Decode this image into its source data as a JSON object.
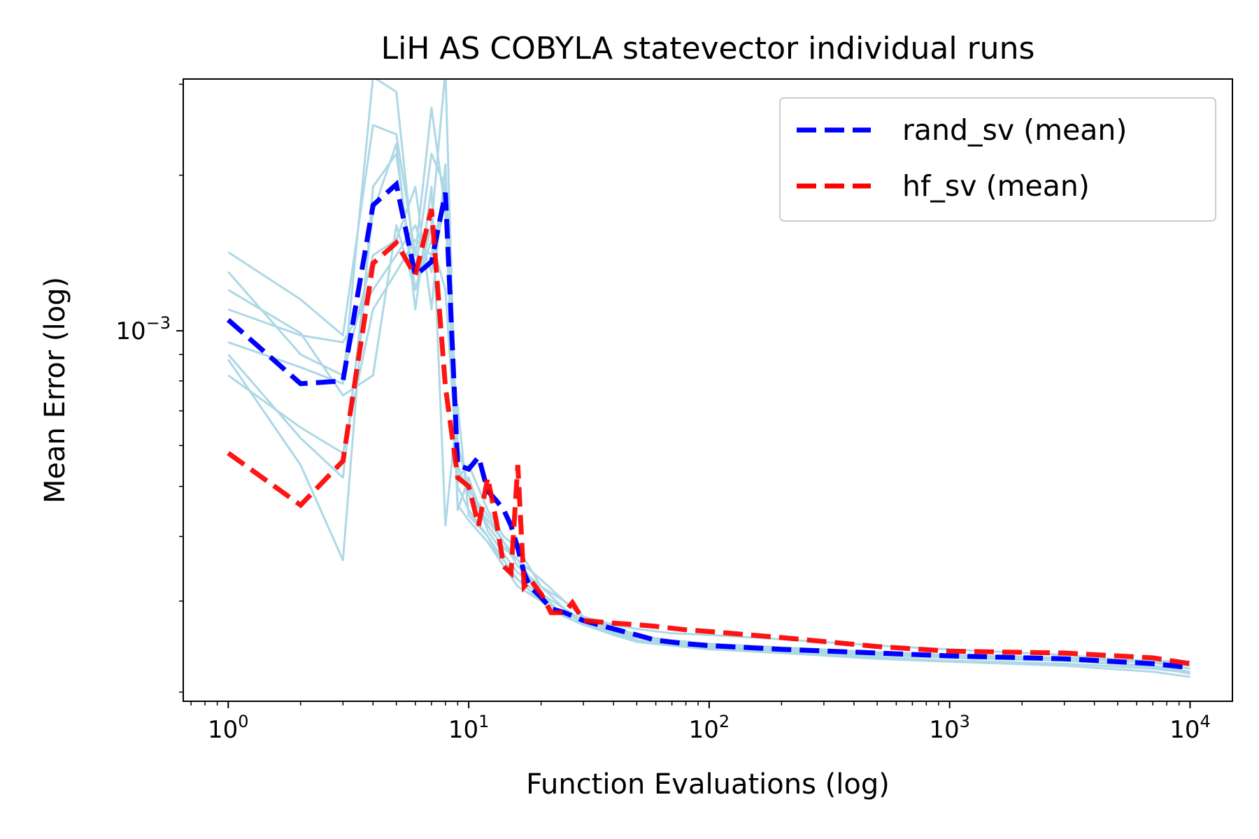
{
  "chart_data": {
    "type": "line",
    "title": "LiH AS COBYLA statevector individual runs",
    "xlabel": "Function Evaluations (log)",
    "ylabel": "Mean Error (log)",
    "xscale": "log",
    "yscale": "log",
    "xlim": [
      0.65,
      15000
    ],
    "ylim": [
      0.000192,
      0.00307
    ],
    "xticks": [
      {
        "value": 1,
        "base": "10",
        "exp": "0"
      },
      {
        "value": 10,
        "base": "10",
        "exp": "1"
      },
      {
        "value": 100,
        "base": "10",
        "exp": "2"
      },
      {
        "value": 1000,
        "base": "10",
        "exp": "3"
      },
      {
        "value": 10000,
        "base": "10",
        "exp": "4"
      }
    ],
    "yticks": [
      {
        "value": 0.001,
        "base": "10",
        "exp": "−3"
      }
    ],
    "legend": {
      "position": "top-right",
      "entries": [
        {
          "label": "rand_sv (mean)",
          "color": "#0000ff",
          "style": "dashed"
        },
        {
          "label": "hf_sv (mean)",
          "color": "#ff0000",
          "style": "dashed"
        }
      ]
    },
    "individual_runs_color": "#add8e6",
    "individual_runs": [
      {
        "x": [
          1,
          2,
          3,
          4,
          5,
          6,
          7,
          8,
          9,
          10,
          12,
          14,
          16,
          20,
          25,
          30,
          40,
          50,
          70,
          100,
          200,
          500,
          1000,
          3000,
          7000,
          10000
        ],
        "y": [
          0.00142,
          0.00115,
          0.00098,
          0.0025,
          0.0024,
          0.0014,
          0.0027,
          0.0017,
          0.00052,
          0.00055,
          0.00045,
          0.0004,
          0.00038,
          0.00032,
          0.0003,
          0.00028,
          0.00027,
          0.000265,
          0.00026,
          0.000258,
          0.000253,
          0.000246,
          0.000242,
          0.000236,
          0.000228,
          0.000222
        ]
      },
      {
        "x": [
          1,
          2,
          3,
          4,
          5,
          6,
          7,
          8,
          9,
          10,
          12,
          14,
          16,
          20,
          25,
          30,
          40,
          50,
          70,
          100,
          200,
          500,
          1000,
          3000,
          7000,
          10000
        ],
        "y": [
          0.00095,
          0.00085,
          0.00079,
          0.0031,
          0.0029,
          0.0013,
          0.0022,
          0.0019,
          0.0006,
          0.0005,
          0.00042,
          0.00038,
          0.00036,
          0.00031,
          0.00029,
          0.00027,
          0.00026,
          0.000255,
          0.000248,
          0.000245,
          0.000242,
          0.000238,
          0.000235,
          0.000232,
          0.000228,
          0.000226
        ]
      },
      {
        "x": [
          1,
          2,
          3,
          4,
          5,
          6,
          7,
          8,
          9,
          10,
          12,
          14,
          16,
          20,
          25,
          30,
          40,
          50,
          70,
          100,
          200,
          500,
          1000,
          3000,
          7000,
          10000
        ],
        "y": [
          0.00088,
          0.00055,
          0.00036,
          0.0019,
          0.0022,
          0.0012,
          0.0016,
          0.0032,
          0.0005,
          0.00045,
          0.0004,
          0.00035,
          0.00033,
          0.0003,
          0.00028,
          0.00027,
          0.000262,
          0.000252,
          0.000247,
          0.000243,
          0.000238,
          0.000232,
          0.000229,
          0.000225,
          0.000219,
          0.000214
        ]
      },
      {
        "x": [
          1,
          2,
          3,
          4,
          5,
          6,
          7,
          8,
          9,
          10,
          12,
          14,
          16,
          20,
          25,
          30,
          40,
          50,
          70,
          100,
          200,
          500,
          1000,
          3000,
          7000,
          10000
        ],
        "y": [
          0.0013,
          0.0009,
          0.00082,
          0.0014,
          0.0015,
          0.0019,
          0.0011,
          0.0021,
          0.00055,
          0.00048,
          0.00043,
          0.00039,
          0.00036,
          0.00033,
          0.0003,
          0.00028,
          0.000268,
          0.000258,
          0.00025,
          0.000246,
          0.000241,
          0.000236,
          0.000233,
          0.00023,
          0.000224,
          0.000217
        ]
      },
      {
        "x": [
          1,
          2,
          3,
          4,
          5,
          6,
          7,
          8,
          9,
          10,
          12,
          14,
          16,
          20,
          25,
          30,
          40,
          50,
          70,
          100,
          200,
          500,
          1000,
          3000,
          7000,
          10000
        ],
        "y": [
          0.0011,
          0.00098,
          0.00095,
          0.0012,
          0.0014,
          0.0016,
          0.0013,
          0.0018,
          0.00045,
          0.00052,
          0.00041,
          0.00037,
          0.00034,
          0.00032,
          0.00029,
          0.000275,
          0.000263,
          0.000256,
          0.000249,
          0.000244,
          0.00024,
          0.000236,
          0.000234,
          0.000232,
          0.00023,
          0.000229
        ]
      },
      {
        "x": [
          1,
          2,
          3,
          4,
          5,
          6,
          7,
          8,
          9,
          10,
          12,
          14,
          16,
          20,
          25,
          30,
          40,
          50,
          70,
          100,
          200,
          500,
          1000,
          3000,
          7000,
          10000
        ],
        "y": [
          0.0009,
          0.00062,
          0.00052,
          0.0017,
          0.0023,
          0.0011,
          0.0019,
          0.00042,
          0.00072,
          0.00044,
          0.0004,
          0.00036,
          0.00033,
          0.00031,
          0.00028,
          0.00027,
          0.000258,
          0.00025,
          0.000246,
          0.000242,
          0.000238,
          0.000233,
          0.00023,
          0.000227,
          0.000222,
          0.000218
        ]
      },
      {
        "x": [
          1,
          2,
          3,
          4,
          5,
          6,
          7,
          8,
          9,
          10,
          12,
          14,
          16,
          20,
          25,
          30,
          40,
          50,
          70,
          100,
          200,
          500,
          1000,
          3000,
          7000,
          10000
        ],
        "y": [
          0.0012,
          0.00099,
          0.00075,
          0.00082,
          0.0016,
          0.0012,
          0.0015,
          0.0012,
          0.00053,
          0.00049,
          0.00044,
          0.00039,
          0.00035,
          0.00032,
          0.0003,
          0.000278,
          0.000265,
          0.000257,
          0.000252,
          0.000248,
          0.000244,
          0.000239,
          0.000236,
          0.000233,
          0.000229,
          0.000225
        ]
      },
      {
        "x": [
          1,
          2,
          3,
          4,
          5,
          6,
          7,
          8,
          9,
          10,
          12,
          14,
          16,
          20,
          25,
          30,
          40,
          50,
          70,
          100,
          200,
          500,
          1000,
          3000,
          7000,
          10000
        ],
        "y": [
          0.00082,
          0.00065,
          0.00058,
          0.0011,
          0.0013,
          0.0015,
          0.0014,
          0.0019,
          0.00046,
          0.00043,
          0.00039,
          0.00035,
          0.00032,
          0.0003,
          0.000285,
          0.000272,
          0.00026,
          0.000252,
          0.000246,
          0.000243,
          0.000239,
          0.000235,
          0.000233,
          0.00023,
          0.000225,
          0.000219
        ]
      }
    ],
    "series": [
      {
        "name": "rand_sv (mean)",
        "color": "#0000ff",
        "x": [
          1,
          2,
          3,
          4,
          5,
          6,
          7,
          8,
          9,
          10,
          11,
          12,
          13,
          14,
          15,
          16,
          17,
          18,
          20,
          22,
          25,
          30,
          40,
          50,
          60,
          80,
          100,
          200,
          500,
          1000,
          3000,
          7000,
          10000
        ],
        "y": [
          0.00105,
          0.00079,
          0.0008,
          0.00175,
          0.00192,
          0.00128,
          0.00136,
          0.00185,
          0.00055,
          0.00054,
          0.00057,
          0.00049,
          0.00047,
          0.00045,
          0.00042,
          0.00038,
          0.00034,
          0.00032,
          0.000305,
          0.00029,
          0.000285,
          0.000275,
          0.000265,
          0.000258,
          0.000252,
          0.000248,
          0.000246,
          0.000242,
          0.000238,
          0.000235,
          0.000232,
          0.000227,
          0.000223
        ]
      },
      {
        "name": "hf_sv (mean)",
        "color": "#ff0000",
        "x": [
          1,
          2,
          3,
          4,
          5,
          6,
          7,
          8,
          9,
          10,
          11,
          12,
          13,
          14,
          15,
          16,
          17,
          18,
          20,
          22,
          25,
          27,
          30,
          40,
          50,
          60,
          80,
          100,
          200,
          500,
          1000,
          3000,
          7000,
          10000
        ],
        "y": [
          0.00058,
          0.00046,
          0.00056,
          0.00135,
          0.00148,
          0.00128,
          0.00172,
          0.00078,
          0.00052,
          0.0005,
          0.00042,
          0.00052,
          0.00043,
          0.00035,
          0.00034,
          0.00055,
          0.00032,
          0.00033,
          0.00031,
          0.000285,
          0.000285,
          0.000298,
          0.000275,
          0.000272,
          0.00027,
          0.000268,
          0.000264,
          0.000262,
          0.000255,
          0.000245,
          0.00024,
          0.000238,
          0.000233,
          0.000227
        ]
      }
    ]
  }
}
